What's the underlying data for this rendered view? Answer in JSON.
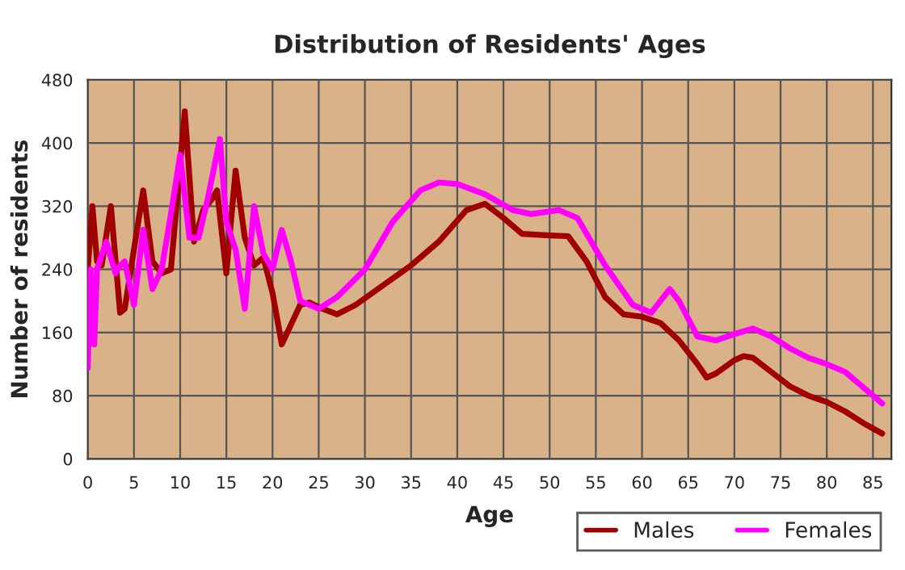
{
  "chart_data": {
    "type": "line",
    "title": "Distribution of Residents' Ages",
    "xlabel": "Age",
    "ylabel": "Number of residents",
    "xlim": [
      0,
      87
    ],
    "xticks": [
      0,
      5,
      10,
      15,
      20,
      25,
      30,
      35,
      40,
      45,
      50,
      55,
      60,
      65,
      70,
      75,
      80,
      85
    ],
    "ylim": [
      0,
      480
    ],
    "yticks": [
      0,
      80,
      160,
      240,
      320,
      400,
      480
    ],
    "grid": true,
    "legend": "bottom right",
    "marker": "none",
    "line_style": "solid",
    "series": [
      {
        "name": "Males",
        "color": "#a00000",
        "x": [
          0,
          0.5,
          1,
          1.5,
          2.5,
          3.5,
          4,
          6,
          7,
          8,
          9,
          10.5,
          11.5,
          12.5,
          13.5,
          14,
          15,
          16,
          17,
          18,
          19,
          20,
          21,
          22,
          23,
          24,
          25,
          27,
          29,
          32,
          35,
          38,
          41,
          43,
          45,
          47,
          50,
          52,
          54,
          56,
          58,
          60,
          62,
          64,
          66,
          67,
          68,
          70,
          71,
          72,
          74,
          76,
          78,
          80,
          82,
          84,
          86
        ],
        "values": [
          240,
          320,
          250,
          245,
          320,
          185,
          190,
          340,
          250,
          235,
          240,
          440,
          275,
          315,
          330,
          340,
          235,
          365,
          280,
          245,
          255,
          210,
          145,
          170,
          195,
          198,
          192,
          183,
          195,
          220,
          245,
          275,
          315,
          323,
          305,
          285,
          283,
          282,
          250,
          205,
          183,
          180,
          172,
          150,
          120,
          103,
          108,
          125,
          130,
          128,
          110,
          92,
          80,
          72,
          60,
          45,
          32
        ]
      },
      {
        "name": "Females",
        "color": "#ff00ff",
        "x": [
          0,
          0.3,
          0.7,
          1,
          2,
          3,
          3.5,
          4,
          5,
          6,
          7,
          8,
          9,
          10,
          11,
          12,
          13,
          14.3,
          15,
          16,
          17,
          18,
          19,
          20,
          21,
          22,
          23,
          25,
          27,
          30,
          33,
          36,
          38,
          40,
          43,
          46,
          48,
          51,
          53,
          56,
          59,
          61,
          63,
          64,
          66,
          68,
          70,
          72,
          74,
          76,
          78,
          80,
          82,
          84,
          86
        ],
        "values": [
          115,
          240,
          145,
          240,
          275,
          235,
          245,
          250,
          195,
          290,
          215,
          240,
          310,
          385,
          280,
          280,
          330,
          405,
          300,
          265,
          190,
          320,
          260,
          240,
          290,
          250,
          200,
          190,
          205,
          240,
          300,
          340,
          350,
          348,
          335,
          315,
          310,
          315,
          305,
          245,
          195,
          185,
          215,
          200,
          155,
          150,
          158,
          165,
          155,
          140,
          128,
          120,
          110,
          90,
          70
        ]
      }
    ]
  }
}
